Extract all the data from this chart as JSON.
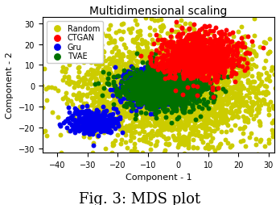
{
  "title": "Multidimensional scaling",
  "xlabel": "Component - 1",
  "ylabel": "Component - 2",
  "xlim": [
    -45,
    32
  ],
  "ylim": [
    -32,
    33
  ],
  "xticks": [
    -40,
    -30,
    -20,
    -10,
    0,
    10,
    20,
    30
  ],
  "yticks": [
    -30,
    -20,
    -10,
    0,
    10,
    20,
    30
  ],
  "caption": "Fig. 3: MDS plot",
  "random_color": "#cccc00",
  "ctgan_color": "#ff0000",
  "gru_color": "#0000ee",
  "tvae_color": "#007000",
  "random_n": 3000,
  "ctgan_n": 1200,
  "gru_n": 800,
  "tvae_n": 1400,
  "random_seed": 42,
  "point_size": 18,
  "alpha": 1.0,
  "legend_labels": [
    "Random",
    "CTGAN",
    "Gru",
    "TVAE"
  ],
  "background_color": "#ffffff",
  "figcaption_fontsize": 13
}
